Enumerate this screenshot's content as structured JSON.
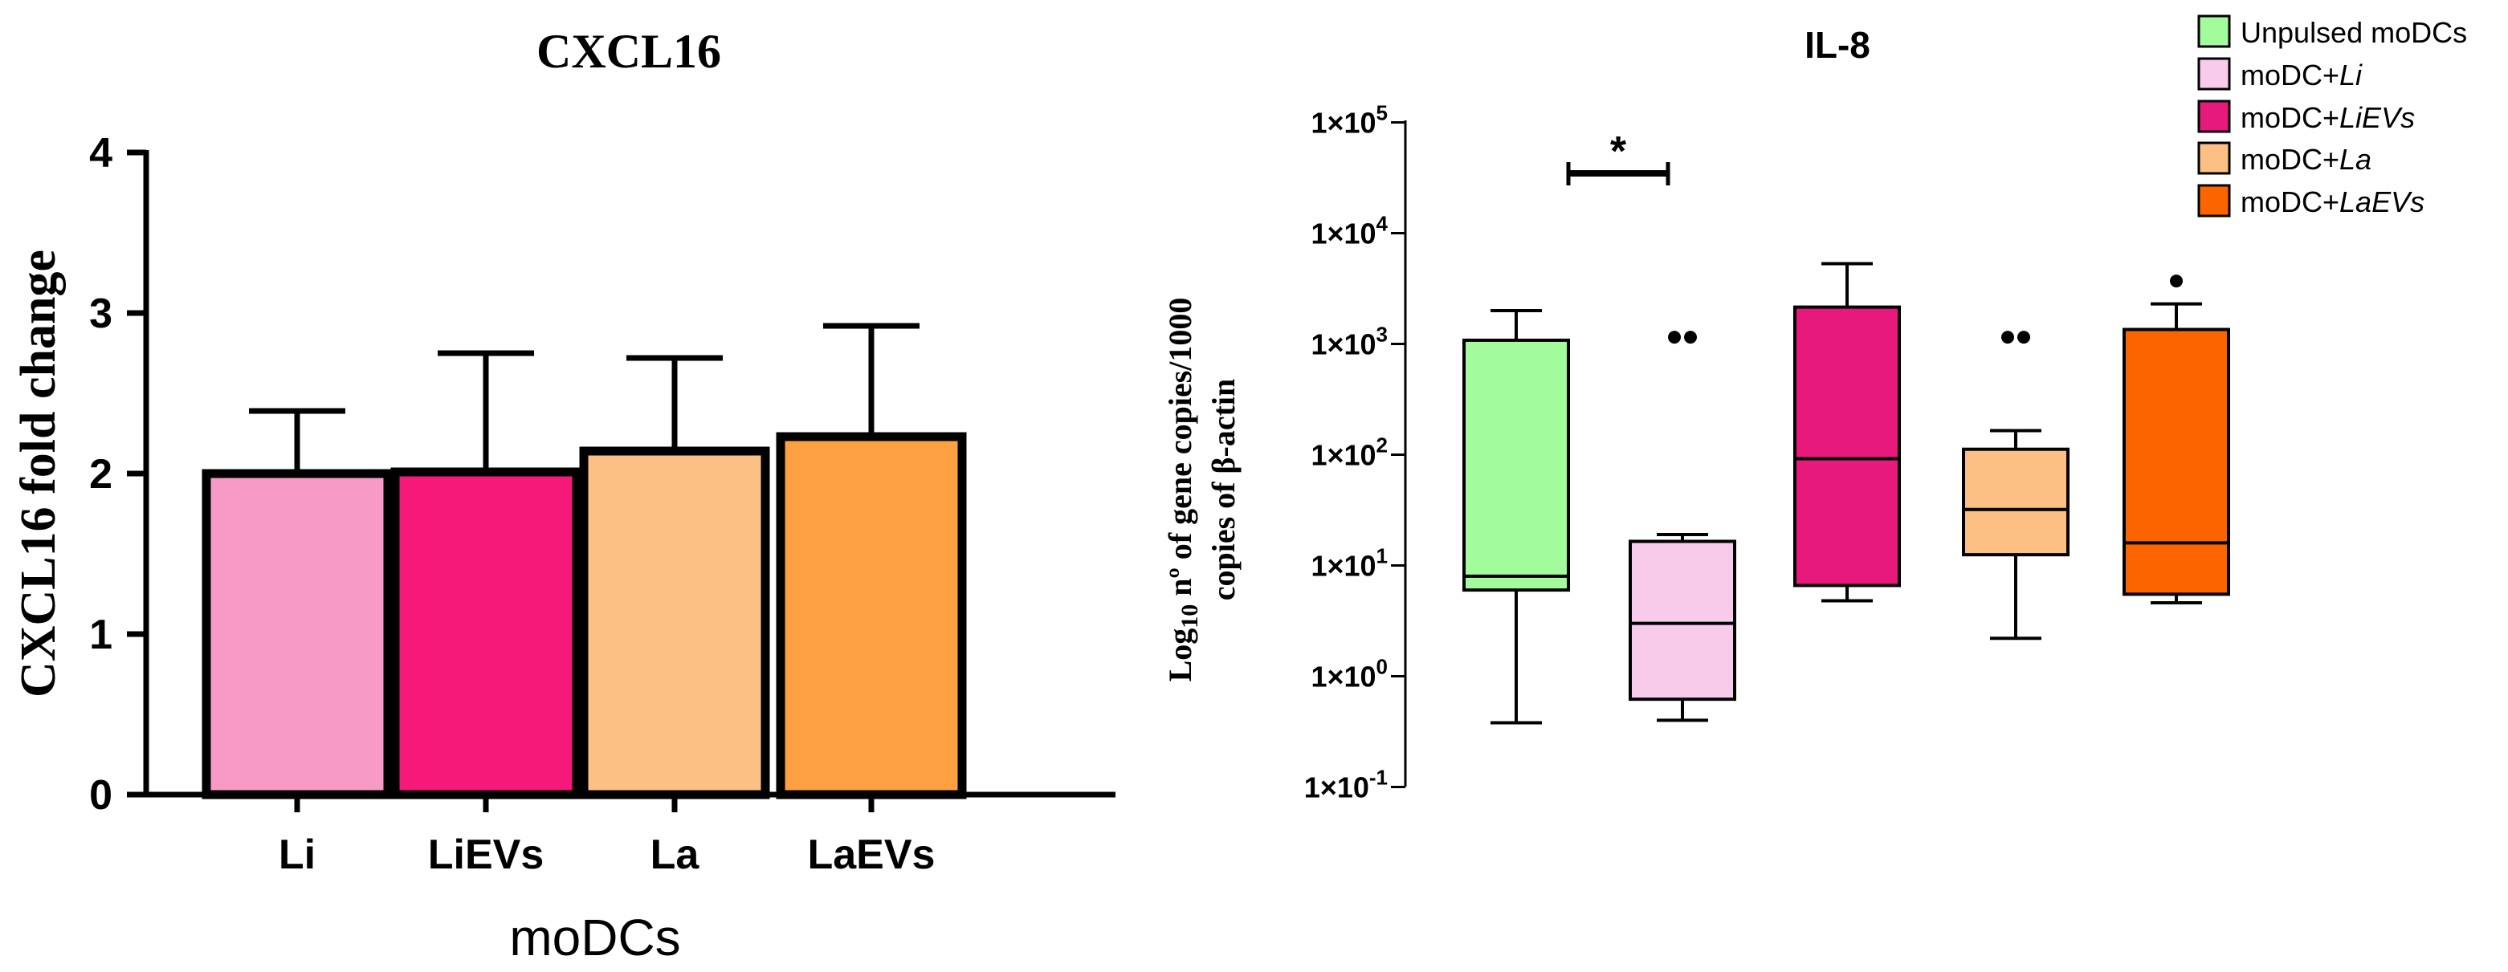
{
  "colors": {
    "axis": "#000000",
    "bar_Li": "#f79bc6",
    "bar_LiEVs": "#f5197a",
    "bar_La": "#fcc084",
    "bar_LaEVs": "#fca041",
    "box_unpulsed": "#a2fc9b",
    "box_moDC_Li": "#f8cbea",
    "box_moDC_LiEVs": "#e8197c",
    "box_moDC_La": "#fcc084",
    "box_moDC_LaEVs": "#fc6400"
  },
  "chart_data": [
    {
      "type": "bar",
      "title": "CXCL16",
      "xlabel": "moDCs",
      "ylabel": "CXCL16 fold change",
      "ylim": [
        0,
        4
      ],
      "yticks": [
        "0",
        "1",
        "2",
        "3",
        "4"
      ],
      "categories": [
        "Li",
        "LiEVs",
        "La",
        "LaEVs"
      ],
      "values": [
        2.0,
        2.01,
        2.14,
        2.23
      ],
      "error_upper": [
        2.39,
        2.75,
        2.72,
        2.92
      ]
    },
    {
      "type": "box",
      "title": "IL-8",
      "scale": "log10",
      "ylabel_line1_prefix": "Log",
      "ylabel_line1_subscript": "10",
      "ylabel_line1_suffix": " nº of gene copies/1000",
      "ylabel_line2": "copies of β-actin",
      "ylim_log10": [
        -1,
        5
      ],
      "yticks": [
        {
          "base": "1×10",
          "exp": "5"
        },
        {
          "base": "1×10",
          "exp": "4"
        },
        {
          "base": "1×10",
          "exp": "3"
        },
        {
          "base": "1×10",
          "exp": "2"
        },
        {
          "base": "1×10",
          "exp": "1"
        },
        {
          "base": "1×10",
          "exp": "0"
        },
        {
          "base": "1×10",
          "exp": "-1"
        }
      ],
      "series": [
        {
          "name": "Unpulsed moDCs",
          "legend_prefix": "Unpulsed moDCs",
          "legend_italic": "",
          "min": 0.38,
          "q1": 6.0,
          "median": 8.0,
          "q3": 1080,
          "max": 2000,
          "outliers": []
        },
        {
          "name": "moDC+Li",
          "legend_prefix": "moDC+",
          "legend_italic": "Li",
          "min": 0.4,
          "q1": 0.62,
          "median": 3.0,
          "q3": 16.5,
          "max": 19.0,
          "outliers": [
            1150,
            1150
          ]
        },
        {
          "name": "moDC+LiEVs",
          "legend_prefix": "moDC+",
          "legend_italic": "LiEVs",
          "min": 4.8,
          "q1": 6.6,
          "median": 92,
          "q3": 2150,
          "max": 5300,
          "outliers": []
        },
        {
          "name": "moDC+La",
          "legend_prefix": "moDC+",
          "legend_italic": "La",
          "min": 2.2,
          "q1": 12.5,
          "median": 32,
          "q3": 112,
          "max": 165,
          "outliers": [
            1150,
            1150
          ]
        },
        {
          "name": "moDC+LaEVs",
          "legend_prefix": "moDC+",
          "legend_italic": "LaEVs",
          "min": 4.6,
          "q1": 5.5,
          "median": 16,
          "q3": 1350,
          "max": 2300,
          "outliers": [
            3700
          ]
        }
      ],
      "significance": {
        "from": 0,
        "to": 1,
        "label": "*"
      }
    }
  ]
}
